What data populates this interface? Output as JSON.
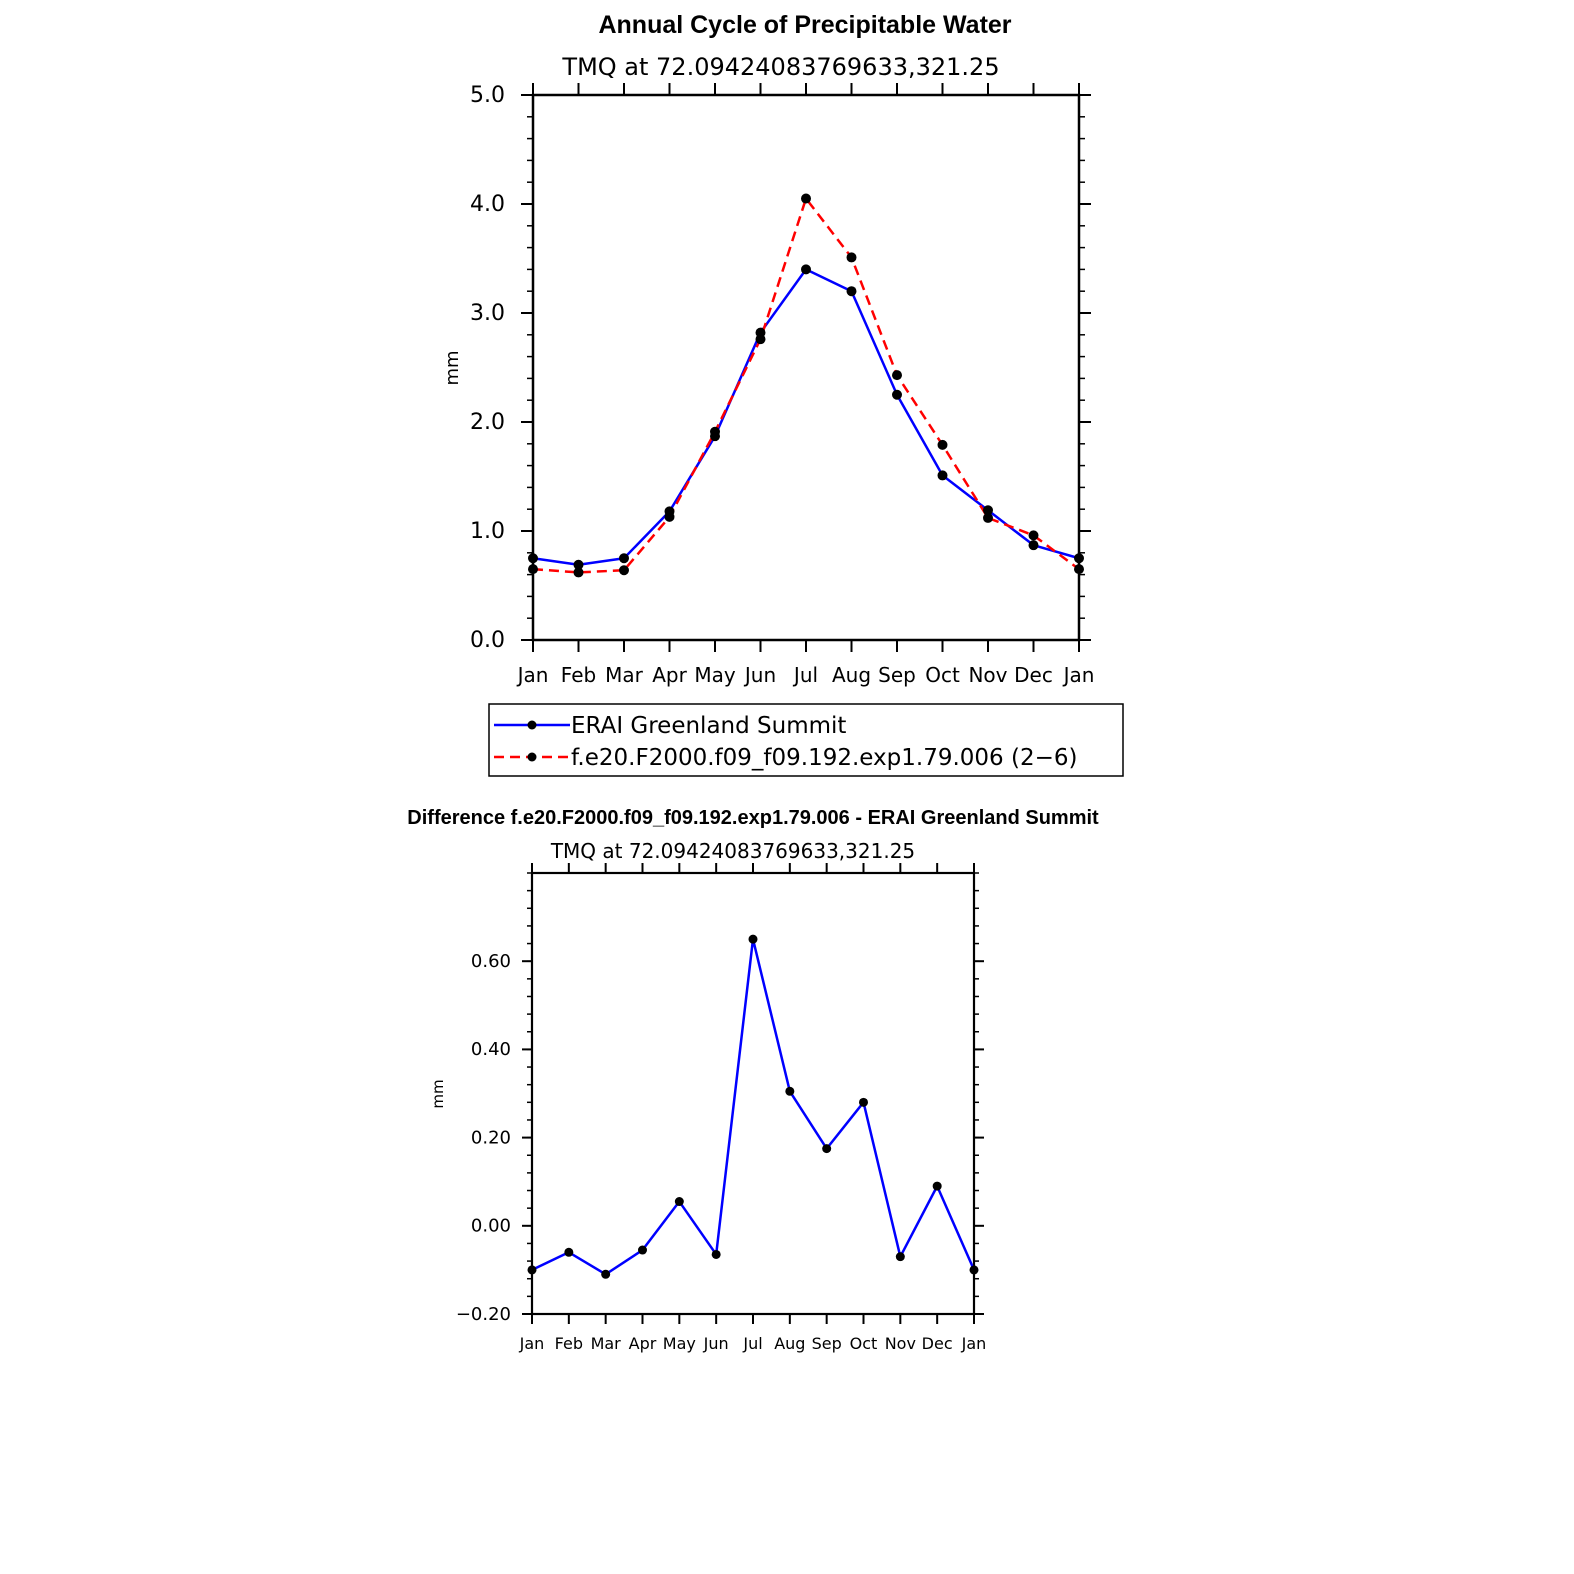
{
  "chart_data": [
    {
      "type": "line",
      "title": "Annual Cycle of Precipitable Water",
      "subtitle": "TMQ  at  72.09424083769633,321.25",
      "xlabel": "",
      "ylabel": "mm",
      "categories": [
        "Jan",
        "Feb",
        "Mar",
        "Apr",
        "May",
        "Jun",
        "Jul",
        "Aug",
        "Sep",
        "Oct",
        "Nov",
        "Dec",
        "Jan"
      ],
      "ylim": [
        0,
        5
      ],
      "yticks": [
        "0.0",
        "1.0",
        "2.0",
        "3.0",
        "4.0",
        "5.0"
      ],
      "ytick_values": [
        0,
        1,
        2,
        3,
        4,
        5
      ],
      "legend_position": "bottom",
      "series": [
        {
          "name": "ERAI Greenland Summit",
          "color": "#0000ff",
          "style": "solid",
          "values": [
            0.75,
            0.69,
            0.75,
            1.18,
            1.87,
            2.82,
            3.4,
            3.2,
            2.25,
            1.51,
            1.19,
            0.87,
            0.75
          ]
        },
        {
          "name": "f.e20.F2000.f09_f09.192.exp1.79.006 (2−6)",
          "color": "#ff0000",
          "style": "dashed",
          "values": [
            0.65,
            0.62,
            0.64,
            1.13,
            1.91,
            2.76,
            4.05,
            3.51,
            2.43,
            1.79,
            1.12,
            0.96,
            0.65
          ]
        }
      ]
    },
    {
      "type": "line",
      "title": "Difference f.e20.F2000.f09_f09.192.exp1.79.006 - ERAI Greenland Summit",
      "subtitle": "TMQ  at  72.09424083769633,321.25",
      "xlabel": "",
      "ylabel": "mm",
      "categories": [
        "Jan",
        "Feb",
        "Mar",
        "Apr",
        "May",
        "Jun",
        "Jul",
        "Aug",
        "Sep",
        "Oct",
        "Nov",
        "Dec",
        "Jan"
      ],
      "ylim": [
        -0.2,
        0.8
      ],
      "yticks": [
        "−0.20",
        "0.00",
        "0.20",
        "0.40",
        "0.60"
      ],
      "ytick_values": [
        -0.2,
        0,
        0.2,
        0.4,
        0.6
      ],
      "series": [
        {
          "color": "#0000ff",
          "style": "solid",
          "values": [
            -0.1,
            -0.06,
            -0.11,
            -0.055,
            0.055,
            -0.065,
            0.65,
            0.305,
            0.175,
            0.28,
            -0.07,
            0.09,
            -0.1
          ]
        }
      ]
    }
  ]
}
